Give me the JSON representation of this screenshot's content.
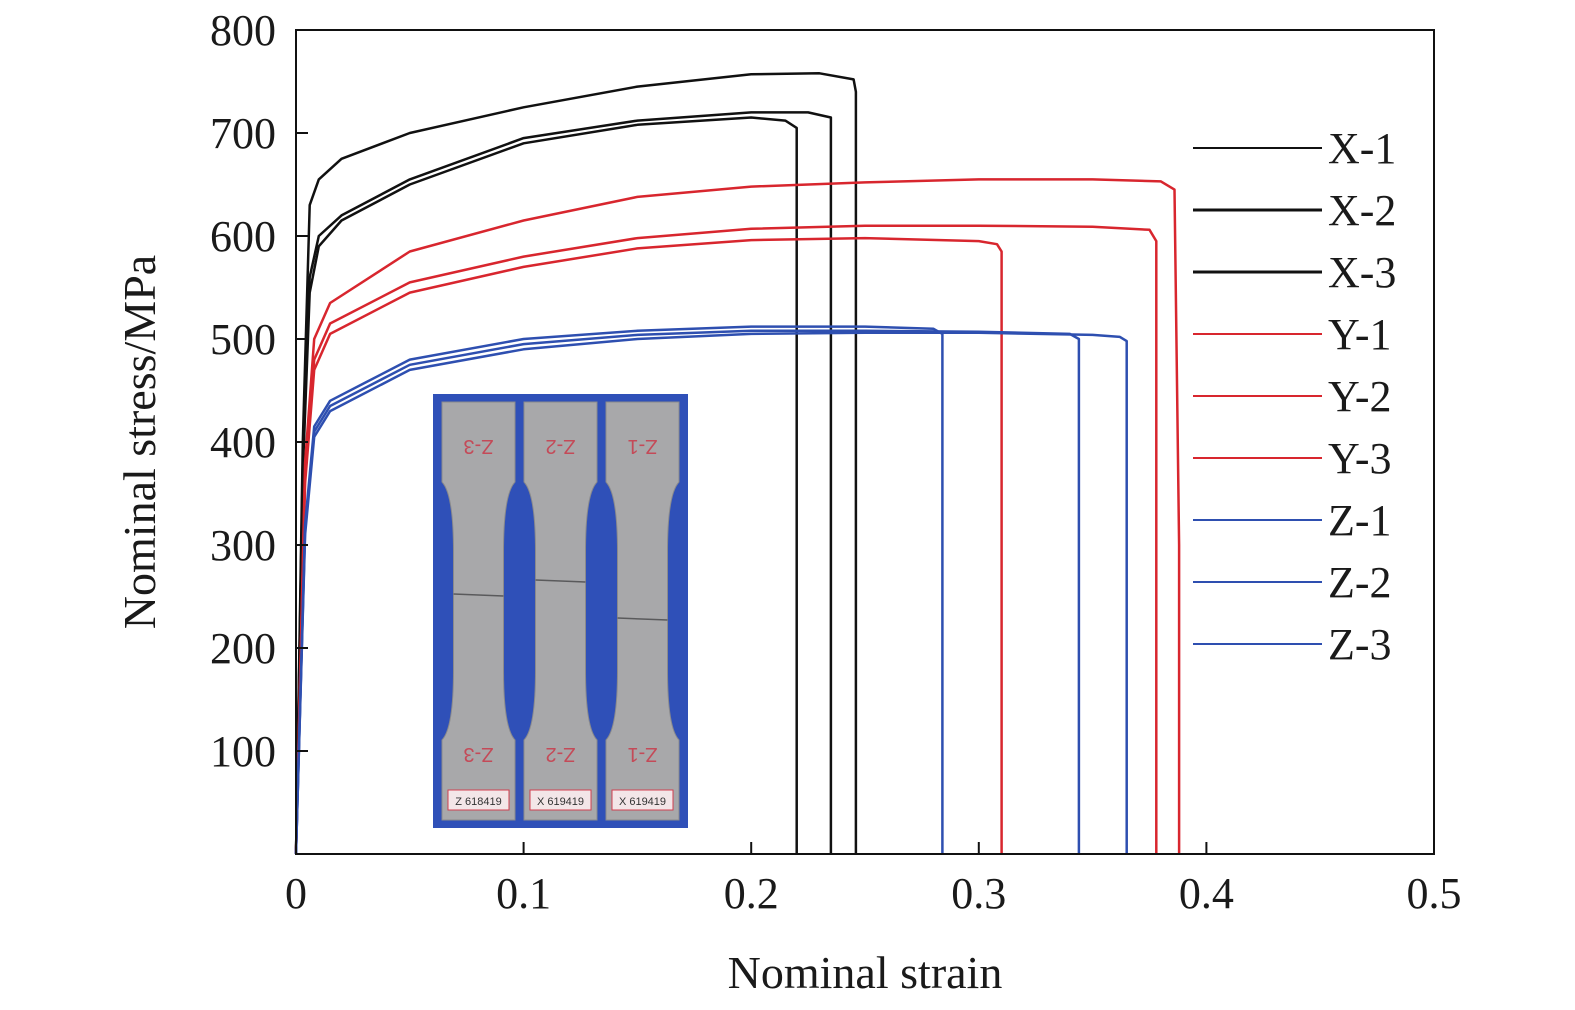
{
  "chart_data": {
    "type": "line",
    "title": "",
    "xlabel": "Nominal strain",
    "ylabel": "Nominal stress/MPa",
    "xlim": [
      0,
      0.5
    ],
    "ylim": [
      0,
      800
    ],
    "x_ticks": [
      0,
      0.1,
      0.2,
      0.3,
      0.4,
      0.5
    ],
    "x_tick_labels": [
      "0",
      "0.1",
      "0.2",
      "0.3",
      "0.4",
      "0.5"
    ],
    "y_ticks": [
      100,
      200,
      300,
      400,
      500,
      600,
      700,
      800
    ],
    "y_tick_labels": [
      "100",
      "200",
      "300",
      "400",
      "500",
      "600",
      "700",
      "800"
    ],
    "grid": false,
    "legend_position": "right",
    "series": [
      {
        "name": "X-1",
        "color": "#111111",
        "x": [
          0.0,
          0.003,
          0.006,
          0.01,
          0.02,
          0.05,
          0.1,
          0.15,
          0.2,
          0.23,
          0.245,
          0.246,
          0.246
        ],
        "y": [
          0,
          400,
          630,
          655,
          675,
          700,
          725,
          745,
          757,
          758,
          752,
          740,
          0
        ]
      },
      {
        "name": "X-2",
        "color": "#111111",
        "x": [
          0.0,
          0.003,
          0.006,
          0.01,
          0.02,
          0.05,
          0.1,
          0.15,
          0.2,
          0.225,
          0.235,
          0.235
        ],
        "y": [
          0,
          380,
          560,
          600,
          620,
          655,
          695,
          712,
          720,
          720,
          715,
          0
        ]
      },
      {
        "name": "X-3",
        "color": "#111111",
        "x": [
          0.0,
          0.003,
          0.006,
          0.01,
          0.02,
          0.05,
          0.1,
          0.15,
          0.2,
          0.215,
          0.22,
          0.22
        ],
        "y": [
          0,
          370,
          545,
          590,
          615,
          650,
          690,
          708,
          715,
          712,
          705,
          0
        ]
      },
      {
        "name": "Y-1",
        "color": "#d8262e",
        "x": [
          0.0,
          0.004,
          0.008,
          0.015,
          0.05,
          0.1,
          0.15,
          0.2,
          0.25,
          0.3,
          0.35,
          0.38,
          0.386,
          0.388,
          0.388
        ],
        "y": [
          0,
          380,
          500,
          535,
          585,
          615,
          638,
          648,
          652,
          655,
          655,
          653,
          645,
          300,
          0
        ]
      },
      {
        "name": "Y-2",
        "color": "#d8262e",
        "x": [
          0.0,
          0.004,
          0.008,
          0.015,
          0.05,
          0.1,
          0.15,
          0.2,
          0.25,
          0.3,
          0.35,
          0.375,
          0.378,
          0.378
        ],
        "y": [
          0,
          370,
          480,
          515,
          555,
          580,
          598,
          607,
          610,
          610,
          609,
          606,
          595,
          0
        ]
      },
      {
        "name": "Y-3",
        "color": "#d8262e",
        "x": [
          0.0,
          0.004,
          0.008,
          0.015,
          0.05,
          0.1,
          0.15,
          0.2,
          0.25,
          0.3,
          0.308,
          0.31,
          0.31
        ],
        "y": [
          0,
          360,
          470,
          505,
          545,
          570,
          588,
          596,
          598,
          595,
          592,
          585,
          0
        ]
      },
      {
        "name": "Z-1",
        "color": "#2e4fb0",
        "x": [
          0.0,
          0.004,
          0.008,
          0.015,
          0.05,
          0.1,
          0.15,
          0.2,
          0.25,
          0.28,
          0.284,
          0.284
        ],
        "y": [
          0,
          320,
          415,
          440,
          480,
          500,
          508,
          512,
          512,
          510,
          505,
          0
        ]
      },
      {
        "name": "Z-2",
        "color": "#2e4fb0",
        "x": [
          0.0,
          0.004,
          0.008,
          0.015,
          0.05,
          0.1,
          0.15,
          0.2,
          0.25,
          0.3,
          0.34,
          0.344,
          0.344
        ],
        "y": [
          0,
          315,
          410,
          435,
          475,
          495,
          504,
          508,
          508,
          507,
          505,
          500,
          0
        ]
      },
      {
        "name": "Z-3",
        "color": "#2e4fb0",
        "x": [
          0.0,
          0.004,
          0.008,
          0.015,
          0.05,
          0.1,
          0.15,
          0.2,
          0.25,
          0.3,
          0.35,
          0.362,
          0.365,
          0.365
        ],
        "y": [
          0,
          310,
          405,
          430,
          470,
          490,
          500,
          505,
          506,
          506,
          504,
          502,
          498,
          0
        ]
      }
    ]
  },
  "inset_photo": {
    "background_color": "#2f50b8",
    "specimens": [
      {
        "top_mark": "Z-3",
        "bottom_mark": "Z-3",
        "tag": "Z 618419"
      },
      {
        "top_mark": "Z-2",
        "bottom_mark": "Z-2",
        "tag": "X 619419"
      },
      {
        "top_mark": "Z-1",
        "bottom_mark": "Z-1",
        "tag": "X 619419"
      }
    ]
  }
}
